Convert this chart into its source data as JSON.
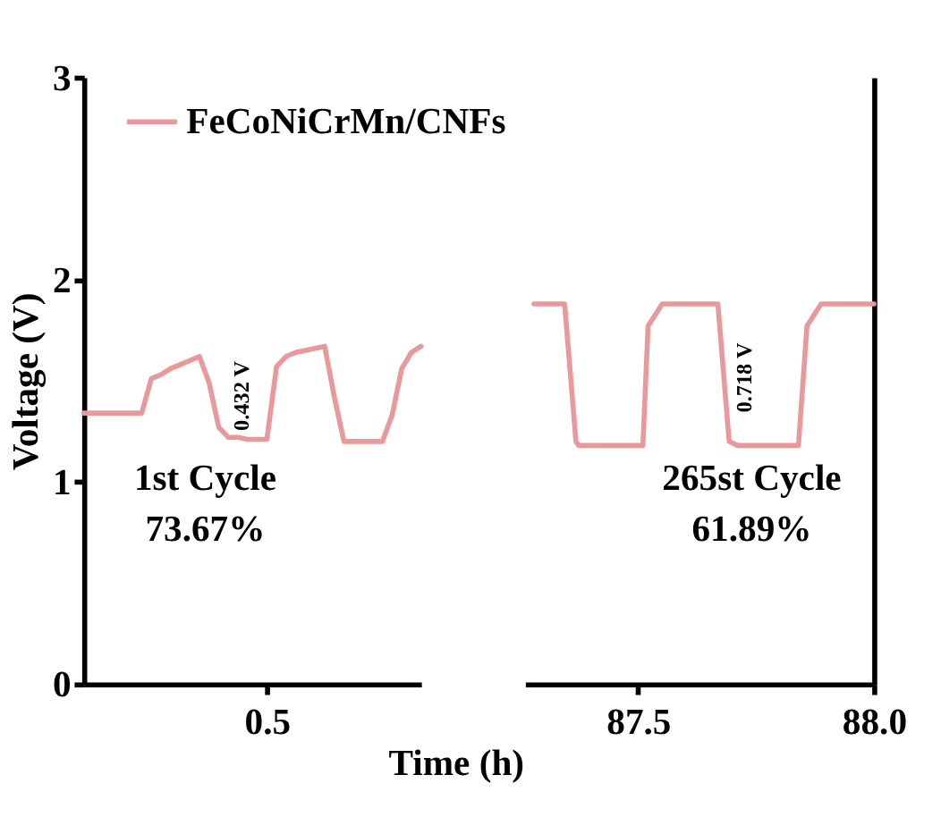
{
  "chart_data": [
    {
      "type": "line",
      "xlabel": "Time (h)",
      "ylabel": "Voltage (V)",
      "categories": [
        null,
        null,
        null,
        null,
        null,
        null,
        null,
        null,
        null,
        null,
        null,
        null,
        null,
        null,
        null,
        null,
        null,
        null,
        null,
        "0.5",
        null,
        null,
        null,
        null,
        null,
        null,
        null,
        null,
        null,
        null,
        null,
        null,
        null,
        null,
        null,
        null
      ],
      "ylim": [
        0,
        3
      ],
      "yticks": [
        0,
        1,
        2,
        3
      ],
      "legend": "top right",
      "series": [
        {
          "name": "FeCoNiCrMn/CNFs",
          "color": "#e8999b",
          "values": [
            1.34,
            1.34,
            1.34,
            1.34,
            1.34,
            1.34,
            1.34,
            1.51,
            1.53,
            1.56,
            1.58,
            1.6,
            1.62,
            1.49,
            1.27,
            1.22,
            1.22,
            1.21,
            1.21,
            1.21,
            1.57,
            1.62,
            1.64,
            1.65,
            1.66,
            1.67,
            1.42,
            1.2,
            1.2,
            1.2,
            1.2,
            1.2,
            1.33,
            1.56,
            1.64,
            1.67
          ]
        }
      ],
      "annotations": [
        "0.432 V",
        "1st Cycle",
        "73.67%"
      ]
    },
    {
      "type": "line",
      "xlim": [
        87.26,
        88.0
      ],
      "xticks": [
        87.5,
        {
          "value": 88.0,
          "label": "88.0"
        }
      ],
      "ylim": [
        0,
        3
      ],
      "yticks": [
        0,
        1,
        2,
        3
      ],
      "tick_labels": "x",
      "series": [
        {
          "color": "#e8999b",
          "x": [
            87.279,
            87.344,
            87.368,
            87.374,
            87.51,
            87.521,
            87.551,
            87.669,
            87.693,
            87.711,
            87.84,
            87.858,
            87.888,
            88.0
          ],
          "values": [
            1.88,
            1.88,
            1.2,
            1.18,
            1.18,
            1.77,
            1.88,
            1.88,
            1.2,
            1.18,
            1.18,
            1.77,
            1.88,
            1.88
          ]
        }
      ],
      "annotations": [
        "0.718 V",
        "265st Cycle",
        "61.89%"
      ]
    }
  ]
}
